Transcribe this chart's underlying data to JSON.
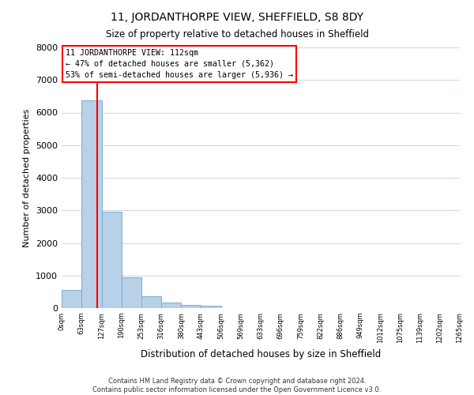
{
  "title_line1": "11, JORDANTHORPE VIEW, SHEFFIELD, S8 8DY",
  "title_line2": "Size of property relative to detached houses in Sheffield",
  "xlabel": "Distribution of detached houses by size in Sheffield",
  "ylabel": "Number of detached properties",
  "bar_edges": [
    0,
    63,
    127,
    190,
    253,
    316,
    380,
    443,
    506,
    569,
    633,
    696,
    759,
    822,
    886,
    949,
    1012,
    1075,
    1139,
    1202,
    1265
  ],
  "bar_heights": [
    560,
    6380,
    2950,
    950,
    360,
    160,
    95,
    70,
    0,
    0,
    0,
    0,
    0,
    0,
    0,
    0,
    0,
    0,
    0,
    0
  ],
  "bar_color": "#b8d0e8",
  "bar_edge_color": "#7aaed0",
  "vline_x": 112,
  "vline_color": "red",
  "annotation_line1": "11 JORDANTHORPE VIEW: 112sqm",
  "annotation_line2": "← 47% of detached houses are smaller (5,362)",
  "annotation_line3": "53% of semi-detached houses are larger (5,936) →",
  "ylim": [
    0,
    8000
  ],
  "yticks": [
    0,
    1000,
    2000,
    3000,
    4000,
    5000,
    6000,
    7000,
    8000
  ],
  "x_tick_labels": [
    "0sqm",
    "63sqm",
    "127sqm",
    "190sqm",
    "253sqm",
    "316sqm",
    "380sqm",
    "443sqm",
    "506sqm",
    "569sqm",
    "633sqm",
    "696sqm",
    "759sqm",
    "822sqm",
    "886sqm",
    "949sqm",
    "1012sqm",
    "1075sqm",
    "1139sqm",
    "1202sqm",
    "1265sqm"
  ],
  "footnote_line1": "Contains HM Land Registry data © Crown copyright and database right 2024.",
  "footnote_line2": "Contains public sector information licensed under the Open Government Licence v3.0.",
  "background_color": "#ffffff",
  "grid_color": "#d0d8e8",
  "fig_width": 6.0,
  "fig_height": 5.0,
  "dpi": 100
}
